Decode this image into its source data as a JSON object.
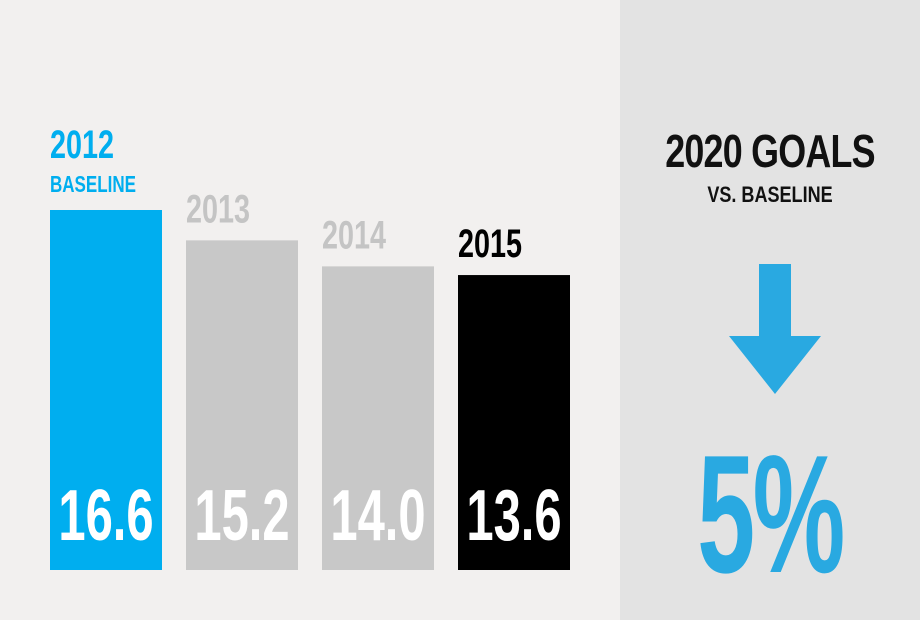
{
  "chart_data": {
    "type": "bar",
    "categories": [
      "2012",
      "2013",
      "2014",
      "2015"
    ],
    "category_notes": [
      "BASELINE",
      "",
      "",
      ""
    ],
    "values": [
      16.6,
      15.2,
      14.0,
      13.6
    ],
    "value_labels": [
      "16.6",
      "15.2",
      "14.0",
      "13.6"
    ],
    "colors": [
      "#00aeef",
      "#c8c8c8",
      "#c8c8c8",
      "#000000"
    ],
    "label_colors": [
      "#00aeef",
      "#c4c4c4",
      "#c4c4c4",
      "#000000"
    ],
    "value_label_color": "#ffffff",
    "ylim": [
      0,
      16.6
    ],
    "grid": false
  },
  "goals": {
    "title": "2020 GOALS",
    "subtitle": "VS. BASELINE",
    "value": "5%",
    "direction_icon": "arrow-down-icon",
    "accent": "#29a9e1"
  }
}
